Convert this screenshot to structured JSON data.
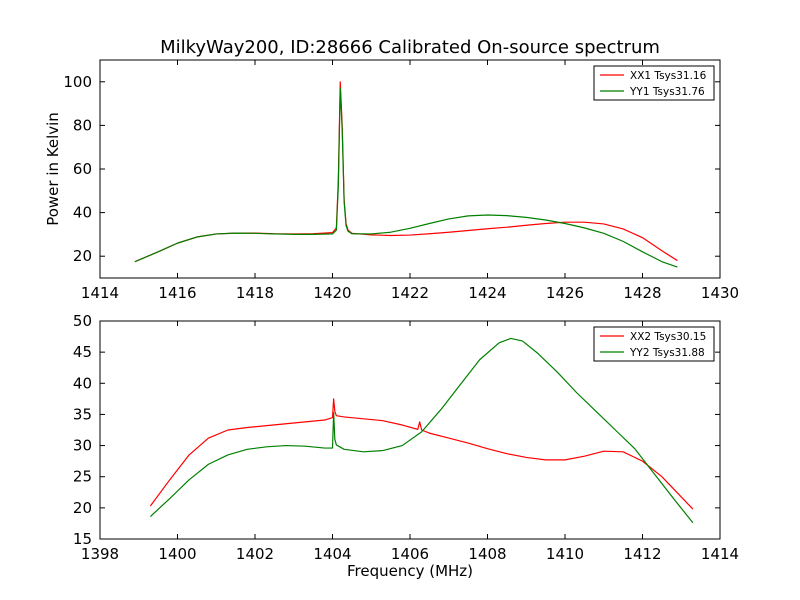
{
  "chart_data": [
    {
      "type": "line",
      "title": "MilkyWay200, ID:28666 Calibrated On-source spectrum",
      "xlabel": "",
      "ylabel": "Power in Kelvin",
      "xlim": [
        1414,
        1430
      ],
      "ylim": [
        10,
        110
      ],
      "xticks": [
        1414,
        1416,
        1418,
        1420,
        1422,
        1424,
        1426,
        1428,
        1430
      ],
      "yticks": [
        20,
        40,
        60,
        80,
        100
      ],
      "grid": false,
      "legend_position": "top-right",
      "series": [
        {
          "name": "XX1 Tsys31.16",
          "color": "#ff0000",
          "x": [
            1414.9,
            1415.5,
            1416,
            1416.5,
            1417,
            1417.5,
            1418,
            1418.5,
            1419,
            1419.5,
            1420,
            1420.1,
            1420.15,
            1420.2,
            1420.25,
            1420.3,
            1420.35,
            1420.4,
            1420.5,
            1421,
            1421.5,
            1422,
            1422.5,
            1423,
            1423.5,
            1424,
            1424.5,
            1425,
            1425.5,
            1426,
            1426.5,
            1427,
            1427.5,
            1428,
            1428.5,
            1428.9
          ],
          "y": [
            17.5,
            22,
            26,
            28.8,
            30.2,
            30.6,
            30.6,
            30.3,
            30.2,
            30.3,
            30.8,
            33,
            55,
            100,
            80,
            46,
            35,
            32,
            30.5,
            29.8,
            29.5,
            29.7,
            30.3,
            31,
            31.8,
            32.6,
            33.3,
            34.2,
            35,
            35.6,
            35.6,
            34.8,
            32.5,
            28.5,
            22.5,
            18.0
          ]
        },
        {
          "name": "YY1 Tsys31.76",
          "color": "#008000",
          "x": [
            1414.9,
            1415.5,
            1416,
            1416.5,
            1417,
            1417.5,
            1418,
            1418.5,
            1419,
            1419.5,
            1420,
            1420.1,
            1420.15,
            1420.2,
            1420.25,
            1420.3,
            1420.35,
            1420.4,
            1420.5,
            1421,
            1421.5,
            1422,
            1422.5,
            1423,
            1423.5,
            1424,
            1424.5,
            1425,
            1425.5,
            1426,
            1426.5,
            1427,
            1427.5,
            1428,
            1428.5,
            1428.9
          ],
          "y": [
            17.5,
            22,
            26,
            28.8,
            30.2,
            30.6,
            30.5,
            30.2,
            30,
            30,
            30.2,
            32,
            52,
            97,
            78,
            45,
            34,
            31.5,
            30.3,
            30.2,
            31,
            32.8,
            35,
            37.1,
            38.5,
            38.9,
            38.6,
            37.8,
            36.6,
            35,
            33,
            30.5,
            26.8,
            22,
            17.5,
            15.0
          ]
        }
      ]
    },
    {
      "type": "line",
      "title": "",
      "xlabel": "Frequency (MHz)",
      "ylabel": "",
      "xlim": [
        1398,
        1414
      ],
      "ylim": [
        15,
        50
      ],
      "xticks": [
        1398,
        1400,
        1402,
        1404,
        1406,
        1408,
        1410,
        1412,
        1414
      ],
      "yticks": [
        15,
        20,
        25,
        30,
        35,
        40,
        45,
        50
      ],
      "grid": false,
      "legend_position": "top-right",
      "series": [
        {
          "name": "XX2 Tsys30.15",
          "color": "#ff0000",
          "x": [
            1399.3,
            1399.8,
            1400.3,
            1400.8,
            1401.3,
            1401.8,
            1402.3,
            1402.8,
            1403.3,
            1403.8,
            1404,
            1404.03,
            1404.06,
            1404.1,
            1404.3,
            1404.8,
            1405.3,
            1405.8,
            1406.2,
            1406.25,
            1406.3,
            1406.5,
            1407,
            1407.5,
            1408,
            1408.5,
            1409,
            1409.5,
            1410,
            1410.5,
            1411,
            1411.5,
            1412,
            1412.5,
            1413.3
          ],
          "y": [
            20.3,
            24.5,
            28.5,
            31.2,
            32.5,
            32.9,
            33.2,
            33.5,
            33.8,
            34.1,
            34.5,
            37.5,
            35.5,
            34.8,
            34.6,
            34.3,
            34,
            33.3,
            32.6,
            33.8,
            32.5,
            32,
            31.2,
            30.4,
            29.5,
            28.7,
            28.1,
            27.7,
            27.7,
            28.3,
            29.1,
            29,
            27.5,
            25,
            19.8
          ]
        },
        {
          "name": "YY2 Tsys31.88",
          "color": "#008000",
          "x": [
            1399.3,
            1399.8,
            1400.3,
            1400.8,
            1401.3,
            1401.8,
            1402.3,
            1402.8,
            1403.3,
            1403.8,
            1404,
            1404.03,
            1404.06,
            1404.1,
            1404.3,
            1404.8,
            1405.3,
            1405.8,
            1406.3,
            1406.8,
            1407.3,
            1407.8,
            1408.3,
            1408.6,
            1408.9,
            1409.3,
            1409.8,
            1410.3,
            1410.8,
            1411.3,
            1411.8,
            1412.3,
            1412.8,
            1413.3
          ],
          "y": [
            18.6,
            21.5,
            24.5,
            27,
            28.5,
            29.4,
            29.8,
            30,
            29.9,
            29.6,
            29.6,
            35.3,
            31,
            30.1,
            29.4,
            29,
            29.2,
            30,
            32.2,
            35.8,
            39.8,
            43.8,
            46.5,
            47.2,
            46.8,
            44.8,
            41.8,
            38.5,
            35.5,
            32.5,
            29.5,
            25.5,
            21.5,
            17.6
          ]
        }
      ]
    }
  ]
}
